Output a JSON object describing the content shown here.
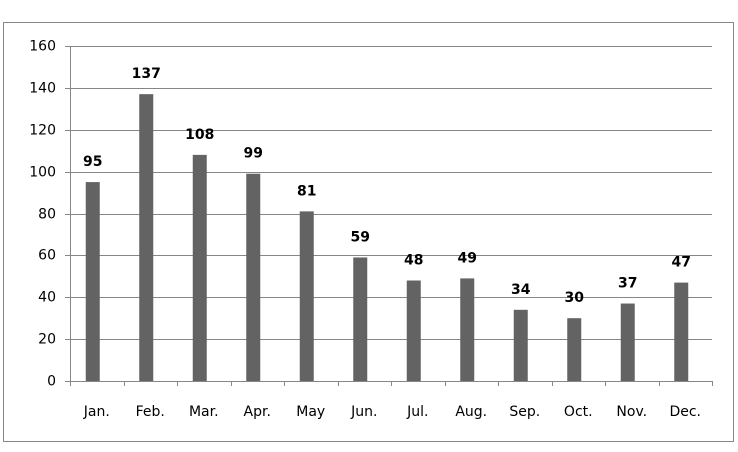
{
  "chart_data": {
    "type": "bar",
    "categories": [
      "Jan.",
      "Feb.",
      "Mar.",
      "Apr.",
      "May",
      "Jun.",
      "Jul.",
      "Aug.",
      "Sep.",
      "Oct.",
      "Nov.",
      "Dec."
    ],
    "values": [
      95,
      137,
      108,
      99,
      81,
      59,
      48,
      49,
      34,
      30,
      37,
      47
    ],
    "color": "#636363",
    "ylim": [
      0,
      160
    ],
    "yticks": [
      0,
      20,
      40,
      60,
      80,
      100,
      120,
      140,
      160
    ],
    "grid": true,
    "data_labels": true
  }
}
